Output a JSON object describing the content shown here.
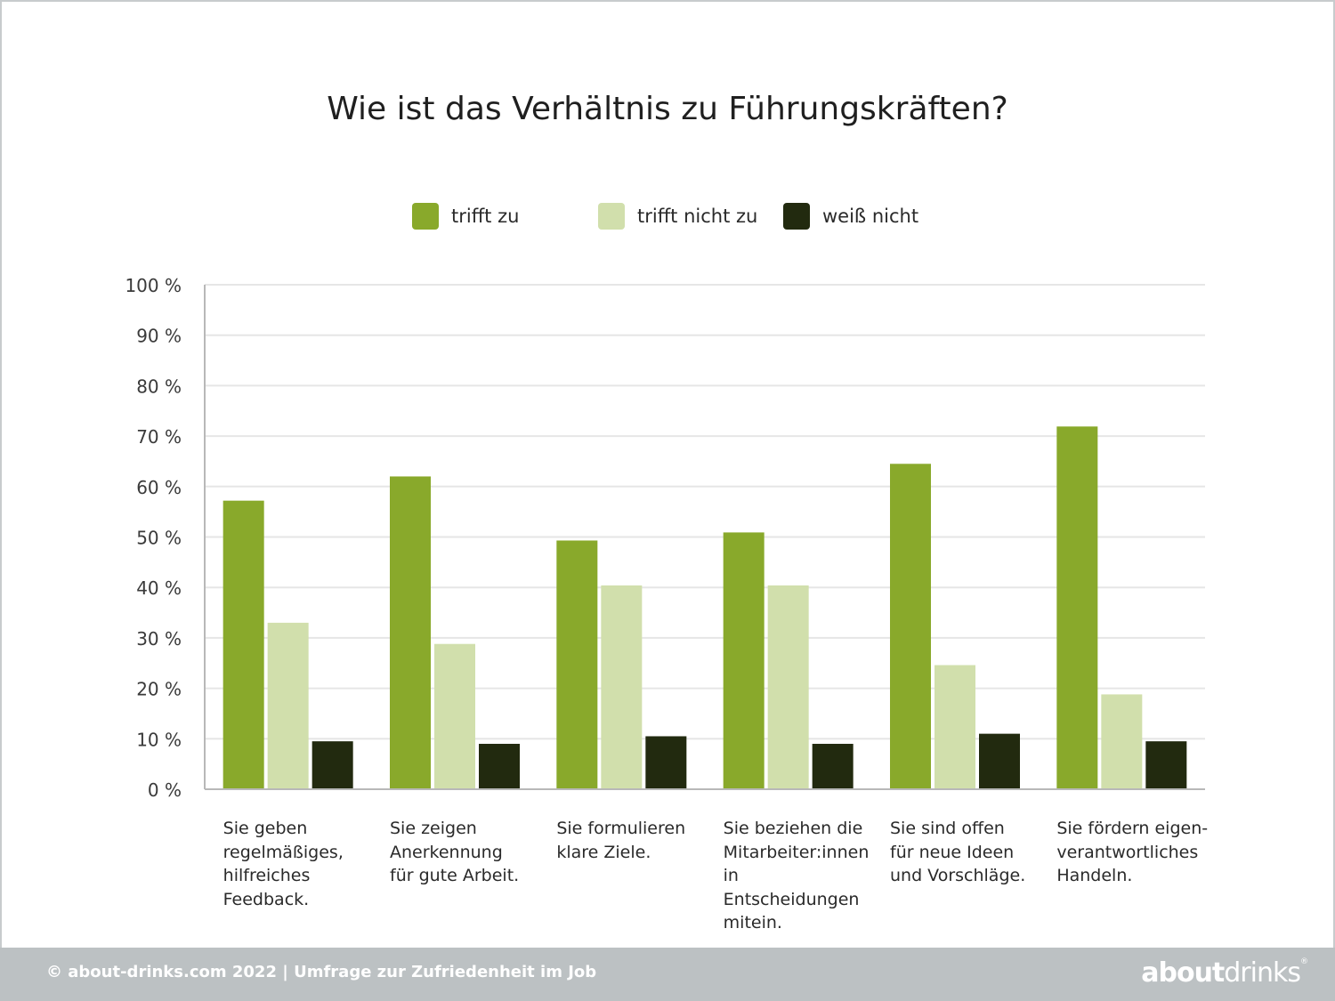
{
  "title": "Wie ist das Verhältnis zu Führungskräften?",
  "colors": {
    "trifft_zu": "#89a92b",
    "trifft_nicht_zu": "#d1dfac",
    "weiss_nicht": "#222a0f",
    "grid": "#e6e6e6",
    "axis": "#b8b8b8",
    "footer_bg": "#bcc1c3"
  },
  "legend": [
    {
      "label": "trifft zu",
      "color": "#89a92b"
    },
    {
      "label": "trifft nicht zu",
      "color": "#d1dfac"
    },
    {
      "label": "weiß nicht",
      "color": "#222a0f"
    }
  ],
  "chart_data": {
    "type": "bar",
    "title": "Wie ist das Verhältnis zu Führungskräften?",
    "categories": [
      "Sie geben\nregelmäßiges,\nhilfreiches\nFeedback.",
      "Sie zeigen\nAnerkennung\nfür gute Arbeit.",
      "Sie formulieren\nklare Ziele.",
      "Sie beziehen die\nMitarbeiter:innen\nin Entscheidungen\nmitein.",
      "Sie sind offen\nfür neue Ideen\nund Vorschläge.",
      "Sie fördern eigen-\nverantwortliches\nHandeln."
    ],
    "series": [
      {
        "name": "trifft zu",
        "color": "#89a92b",
        "values": [
          57.2,
          62.0,
          49.3,
          50.9,
          64.5,
          71.9
        ]
      },
      {
        "name": "trifft nicht zu",
        "color": "#d1dfac",
        "values": [
          33.0,
          28.8,
          40.4,
          40.4,
          24.6,
          18.8
        ]
      },
      {
        "name": "weiß nicht",
        "color": "#222a0f",
        "values": [
          9.5,
          9.0,
          10.5,
          9.0,
          11.0,
          9.5
        ]
      }
    ],
    "ylim": [
      0,
      100
    ],
    "yticks": [
      "0 %",
      "10 %",
      "20 %",
      "30 %",
      "40 %",
      "50 %",
      "60 %",
      "70 %",
      "80 %",
      "90 %",
      "100 %"
    ],
    "grid": true,
    "legend_position": "top-center"
  },
  "footer": {
    "text": "© about-drinks.com 2022  |  Umfrage zur Zufriedenheit im Job",
    "brand_bold": "about",
    "brand_light": "drinks",
    "brand_mark": "®"
  }
}
